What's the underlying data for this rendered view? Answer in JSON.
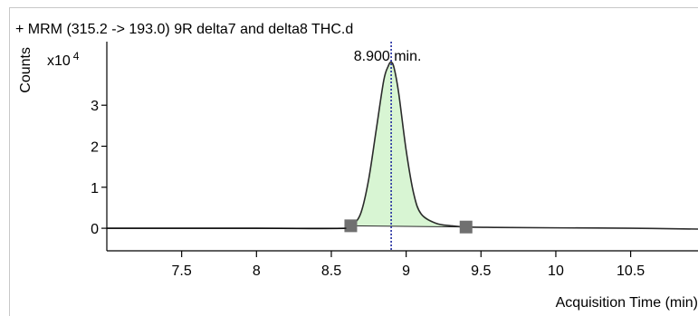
{
  "chart_data": {
    "type": "line",
    "title": "+ MRM (315.2 -> 193.0) 9R delta7 and delta8 THC.d",
    "xlabel": "Acquisition Time (min)",
    "ylabel": "Counts",
    "y_multiplier": "x10",
    "y_exponent": "4",
    "xlim": [
      7.0,
      10.95
    ],
    "ylim": [
      -0.55,
      4.55
    ],
    "x_ticks": [
      {
        "value": 7.5,
        "label": "7.5"
      },
      {
        "value": 8,
        "label": "8"
      },
      {
        "value": 8.5,
        "label": "8.5"
      },
      {
        "value": 9,
        "label": "9"
      },
      {
        "value": 9.5,
        "label": "9.5"
      },
      {
        "value": 10,
        "label": "10"
      },
      {
        "value": 10.5,
        "label": "10.5"
      }
    ],
    "y_ticks": [
      {
        "value": 0,
        "label": "0"
      },
      {
        "value": 1,
        "label": "1"
      },
      {
        "value": 2,
        "label": "2"
      },
      {
        "value": 3,
        "label": "3"
      }
    ],
    "series": [
      {
        "x": [
          7.0,
          8.0,
          8.6,
          8.65,
          8.7,
          8.75,
          8.8,
          8.85,
          8.88,
          8.9,
          8.92,
          8.95,
          9.0,
          9.05,
          9.1,
          9.2,
          9.3,
          9.4,
          9.6,
          10.0,
          10.5,
          10.95
        ],
        "y": [
          0.0,
          0.0,
          0.0,
          0.1,
          0.4,
          1.2,
          2.4,
          3.6,
          3.95,
          4.05,
          3.9,
          3.3,
          1.9,
          0.85,
          0.35,
          0.12,
          0.06,
          0.03,
          0.02,
          0.01,
          0.0,
          -0.02
        ]
      }
    ],
    "peak": {
      "x": 8.9,
      "label": "8.900 min."
    },
    "integration": {
      "start": 8.63,
      "end": 9.4,
      "fill_color": "#d8f5d3"
    },
    "marker_color": "#707070",
    "rt_line_color": "#1f2a9e"
  }
}
